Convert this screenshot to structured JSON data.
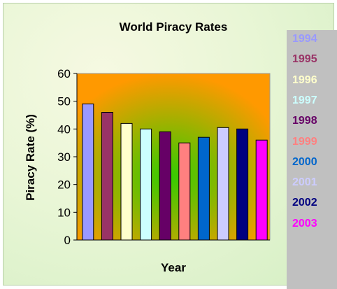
{
  "chart_data": {
    "type": "bar",
    "title": "World Piracy Rates",
    "xlabel": "Year",
    "ylabel": "Piracy Rate (%)",
    "ylim": [
      0,
      60
    ],
    "yticks": [
      0,
      10,
      20,
      30,
      40,
      50,
      60
    ],
    "grid": false,
    "legend_position": "right",
    "categories": [
      "1994",
      "1995",
      "1996",
      "1997",
      "1998",
      "1999",
      "2000",
      "2001",
      "2002",
      "2003"
    ],
    "values": [
      49,
      46,
      42,
      40,
      39,
      35,
      37,
      40.5,
      40,
      36
    ],
    "colors": [
      "#9999ff",
      "#993366",
      "#ffffcc",
      "#ccffff",
      "#660066",
      "#ff8080",
      "#0066cc",
      "#ccccff",
      "#000080",
      "#ff00ff"
    ],
    "plot_background": [
      "#ff9900",
      "#33cc00"
    ]
  }
}
